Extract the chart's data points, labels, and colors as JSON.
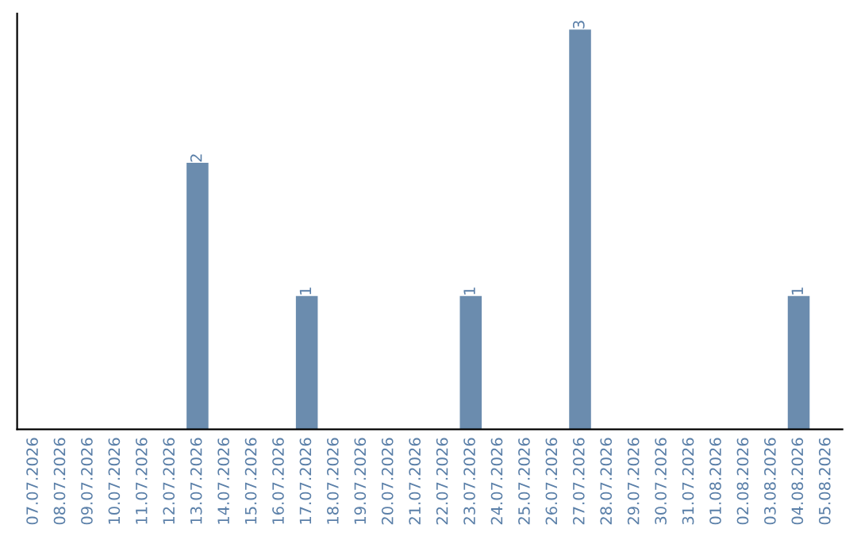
{
  "chart_data": {
    "type": "bar",
    "categories": [
      "07.07.2026",
      "08.07.2026",
      "09.07.2026",
      "10.07.2026",
      "11.07.2026",
      "12.07.2026",
      "13.07.2026",
      "14.07.2026",
      "15.07.2026",
      "16.07.2026",
      "17.07.2026",
      "18.07.2026",
      "19.07.2026",
      "20.07.2026",
      "21.07.2026",
      "22.07.2026",
      "23.07.2026",
      "24.07.2026",
      "25.07.2026",
      "26.07.2026",
      "27.07.2026",
      "28.07.2026",
      "29.07.2026",
      "30.07.2026",
      "31.07.2026",
      "01.08.2026",
      "02.08.2026",
      "03.08.2026",
      "04.08.2026",
      "05.08.2026"
    ],
    "values": [
      0,
      0,
      0,
      0,
      0,
      0,
      2,
      0,
      0,
      0,
      1,
      0,
      0,
      0,
      0,
      0,
      1,
      0,
      0,
      0,
      3,
      0,
      0,
      0,
      0,
      0,
      0,
      0,
      1,
      0
    ],
    "value_labels": [
      null,
      null,
      null,
      null,
      null,
      null,
      "2",
      null,
      null,
      null,
      "1",
      null,
      null,
      null,
      null,
      null,
      "1",
      null,
      null,
      null,
      "3",
      null,
      null,
      null,
      null,
      null,
      null,
      null,
      "1",
      null
    ],
    "color": "#6b8cae",
    "tick_labels": "x",
    "grid": false,
    "legend": false
  }
}
